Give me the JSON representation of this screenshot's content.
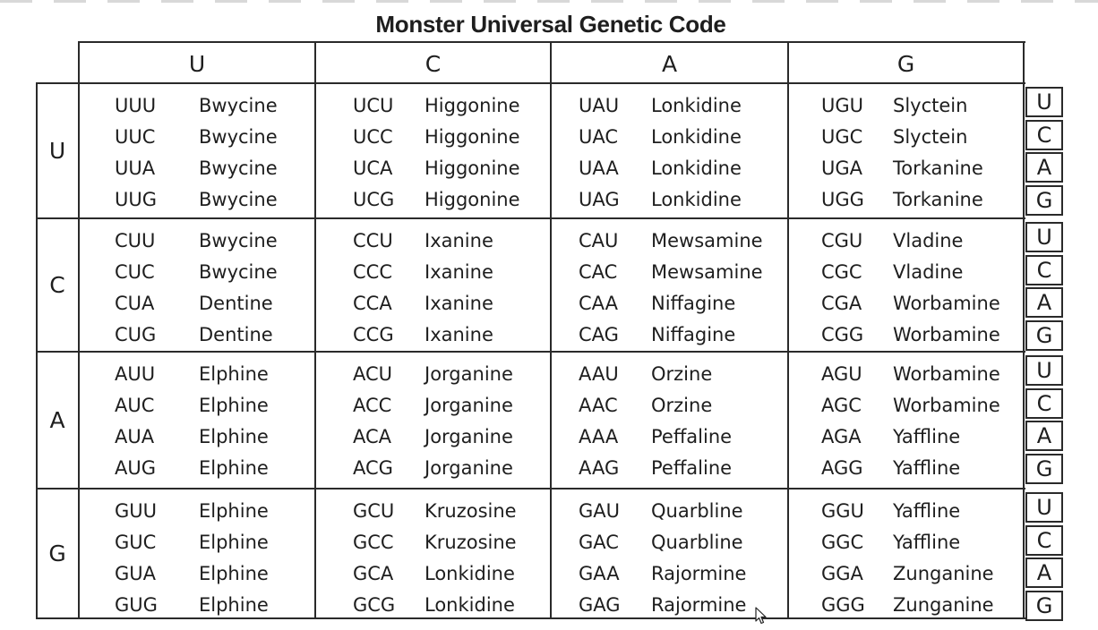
{
  "title": "Monster Universal Genetic Code",
  "header": {
    "columns": [
      "U",
      "C",
      "A",
      "G"
    ]
  },
  "row_labels": [
    "U",
    "C",
    "A",
    "G"
  ],
  "third_position": [
    "U",
    "C",
    "A",
    "G"
  ],
  "blocks": [
    [
      [
        [
          "UUU",
          "Bwycine"
        ],
        [
          "UUC",
          "Bwycine"
        ],
        [
          "UUA",
          "Bwycine"
        ],
        [
          "UUG",
          "Bwycine"
        ]
      ],
      [
        [
          "UCU",
          "Higgonine"
        ],
        [
          "UCC",
          "Higgonine"
        ],
        [
          "UCA",
          "Higgonine"
        ],
        [
          "UCG",
          "Higgonine"
        ]
      ],
      [
        [
          "UAU",
          "Lonkidine"
        ],
        [
          "UAC",
          "Lonkidine"
        ],
        [
          "UAA",
          "Lonkidine"
        ],
        [
          "UAG",
          "Lonkidine"
        ]
      ],
      [
        [
          "UGU",
          "Slyctein"
        ],
        [
          "UGC",
          "Slyctein"
        ],
        [
          "UGA",
          "Torkanine"
        ],
        [
          "UGG",
          "Torkanine"
        ]
      ]
    ],
    [
      [
        [
          "CUU",
          "Bwycine"
        ],
        [
          "CUC",
          "Bwycine"
        ],
        [
          "CUA",
          "Dentine"
        ],
        [
          "CUG",
          "Dentine"
        ]
      ],
      [
        [
          "CCU",
          "Ixanine"
        ],
        [
          "CCC",
          "Ixanine"
        ],
        [
          "CCA",
          "Ixanine"
        ],
        [
          "CCG",
          "Ixanine"
        ]
      ],
      [
        [
          "CAU",
          "Mewsamine"
        ],
        [
          "CAC",
          "Mewsamine"
        ],
        [
          "CAA",
          "Niffagine"
        ],
        [
          "CAG",
          "Niffagine"
        ]
      ],
      [
        [
          "CGU",
          "Vladine"
        ],
        [
          "CGC",
          "Vladine"
        ],
        [
          "CGA",
          "Worbamine"
        ],
        [
          "CGG",
          "Worbamine"
        ]
      ]
    ],
    [
      [
        [
          "AUU",
          "Elphine"
        ],
        [
          "AUC",
          "Elphine"
        ],
        [
          "AUA",
          "Elphine"
        ],
        [
          "AUG",
          "Elphine"
        ]
      ],
      [
        [
          "ACU",
          "Jorganine"
        ],
        [
          "ACC",
          "Jorganine"
        ],
        [
          "ACA",
          "Jorganine"
        ],
        [
          "ACG",
          "Jorganine"
        ]
      ],
      [
        [
          "AAU",
          "Orzine"
        ],
        [
          "AAC",
          "Orzine"
        ],
        [
          "AAA",
          "Peffaline"
        ],
        [
          "AAG",
          "Peffaline"
        ]
      ],
      [
        [
          "AGU",
          "Worbamine"
        ],
        [
          "AGC",
          "Worbamine"
        ],
        [
          "AGA",
          "Yaffline"
        ],
        [
          "AGG",
          "Yaffline"
        ]
      ]
    ],
    [
      [
        [
          "GUU",
          "Elphine"
        ],
        [
          "GUC",
          "Elphine"
        ],
        [
          "GUA",
          "Elphine"
        ],
        [
          "GUG",
          "Elphine"
        ]
      ],
      [
        [
          "GCU",
          "Kruzosine"
        ],
        [
          "GCC",
          "Kruzosine"
        ],
        [
          "GCA",
          "Lonkidine"
        ],
        [
          "GCG",
          "Lonkidine"
        ]
      ],
      [
        [
          "GAU",
          "Quarbline"
        ],
        [
          "GAC",
          "Quarbline"
        ],
        [
          "GAA",
          "Rajormine"
        ],
        [
          "GAG",
          "Rajormine"
        ]
      ],
      [
        [
          "GGU",
          "Yaffline"
        ],
        [
          "GGC",
          "Yaffline"
        ],
        [
          "GGA",
          "Zunganine"
        ],
        [
          "GGG",
          "Zunganine"
        ]
      ]
    ]
  ]
}
